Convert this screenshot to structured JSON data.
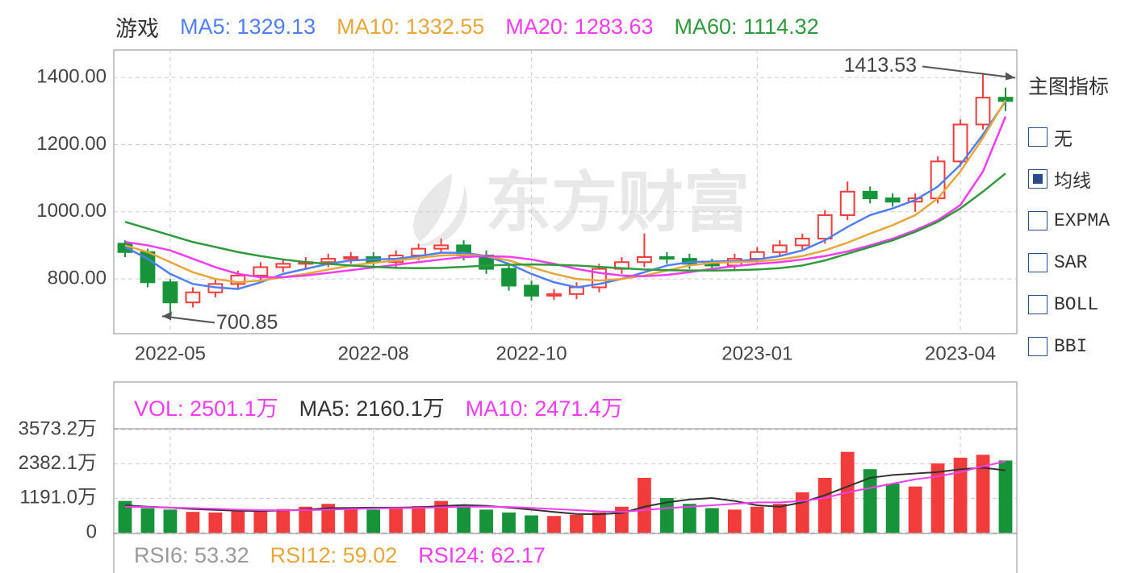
{
  "title": "游戏",
  "watermark": "东方财富",
  "chart_data": [
    {
      "type": "candlestick",
      "categories": [
        null,
        null,
        "2022-05",
        null,
        null,
        null,
        null,
        null,
        null,
        null,
        null,
        "2022-08",
        null,
        null,
        null,
        null,
        null,
        null,
        "2022-10",
        null,
        null,
        null,
        null,
        null,
        null,
        null,
        null,
        null,
        "2023-01",
        null,
        null,
        null,
        null,
        null,
        null,
        null,
        null,
        "2023-04",
        null,
        null
      ],
      "ohlc": [
        [
          905,
          915,
          865,
          880
        ],
        [
          880,
          890,
          775,
          790
        ],
        [
          790,
          800,
          700.85,
          730
        ],
        [
          730,
          775,
          715,
          760
        ],
        [
          760,
          800,
          745,
          785
        ],
        [
          785,
          825,
          770,
          810
        ],
        [
          810,
          850,
          795,
          835
        ],
        [
          835,
          860,
          820,
          845
        ],
        [
          845,
          865,
          830,
          850
        ],
        [
          850,
          875,
          835,
          860
        ],
        [
          860,
          880,
          845,
          865
        ],
        [
          865,
          880,
          835,
          850
        ],
        [
          850,
          885,
          835,
          870
        ],
        [
          870,
          905,
          855,
          890
        ],
        [
          890,
          920,
          875,
          900
        ],
        [
          900,
          915,
          855,
          870
        ],
        [
          870,
          885,
          815,
          830
        ],
        [
          830,
          845,
          765,
          780
        ],
        [
          780,
          795,
          735,
          750
        ],
        [
          750,
          770,
          738,
          755
        ],
        [
          755,
          790,
          740,
          775
        ],
        [
          775,
          845,
          760,
          830
        ],
        [
          830,
          865,
          815,
          850
        ],
        [
          850,
          935,
          835,
          865
        ],
        [
          865,
          880,
          845,
          860
        ],
        [
          860,
          875,
          830,
          845
        ],
        [
          845,
          860,
          825,
          840
        ],
        [
          840,
          875,
          825,
          860
        ],
        [
          860,
          895,
          845,
          880
        ],
        [
          880,
          915,
          865,
          900
        ],
        [
          900,
          935,
          885,
          920
        ],
        [
          920,
          1005,
          905,
          990
        ],
        [
          990,
          1090,
          975,
          1060
        ],
        [
          1060,
          1075,
          1025,
          1040
        ],
        [
          1040,
          1055,
          1015,
          1030
        ],
        [
          1030,
          1055,
          1000,
          1040
        ],
        [
          1040,
          1165,
          1025,
          1150
        ],
        [
          1150,
          1275,
          1135,
          1260
        ],
        [
          1260,
          1413.53,
          1245,
          1340
        ],
        [
          1340,
          1370,
          1300,
          1330
        ]
      ],
      "up_color": "#f23b3b",
      "down_color": "#17943a",
      "series": [
        {
          "name": "MA5",
          "color": "#4f7ff0",
          "values": [
            895,
            860,
            815,
            785,
            775,
            770,
            790,
            815,
            830,
            845,
            855,
            858,
            860,
            868,
            878,
            878,
            868,
            845,
            815,
            790,
            775,
            785,
            800,
            820,
            840,
            850,
            852,
            853,
            858,
            868,
            885,
            915,
            955,
            990,
            1010,
            1035,
            1075,
            1140,
            1230,
            1329.13
          ]
        },
        {
          "name": "MA10",
          "color": "#e8a53a",
          "values": [
            900,
            880,
            850,
            820,
            800,
            790,
            795,
            805,
            815,
            828,
            840,
            848,
            855,
            862,
            870,
            872,
            868,
            855,
            835,
            815,
            800,
            795,
            800,
            810,
            825,
            840,
            848,
            850,
            852,
            858,
            868,
            885,
            908,
            935,
            960,
            990,
            1040,
            1120,
            1220,
            1332.55
          ]
        },
        {
          "name": "MA20",
          "color": "#f23cf0",
          "values": [
            910,
            900,
            885,
            860,
            835,
            815,
            805,
            805,
            810,
            818,
            826,
            834,
            842,
            850,
            858,
            865,
            868,
            866,
            858,
            845,
            830,
            818,
            810,
            808,
            812,
            820,
            830,
            838,
            845,
            850,
            858,
            868,
            882,
            900,
            920,
            945,
            975,
            1020,
            1120,
            1283.63
          ]
        },
        {
          "name": "MA60",
          "color": "#2f9a3c",
          "values": [
            970,
            950,
            930,
            910,
            895,
            880,
            868,
            858,
            850,
            845,
            840,
            836,
            833,
            832,
            833,
            836,
            840,
            842,
            843,
            842,
            840,
            836,
            832,
            828,
            826,
            825,
            825,
            826,
            828,
            832,
            840,
            855,
            875,
            895,
            915,
            940,
            970,
            1010,
            1060,
            1114.32
          ]
        }
      ],
      "ylim": [
        637,
        1482
      ],
      "yticks": [
        {
          "value": 800,
          "label": "800.00"
        },
        {
          "value": 1000,
          "label": "1000.00"
        },
        {
          "value": 1200,
          "label": "1200.00"
        },
        {
          "value": 1400,
          "label": "1400.00"
        }
      ],
      "grid": true
    },
    {
      "type": "bar",
      "values": [
        1100,
        850,
        800,
        720,
        700,
        760,
        780,
        820,
        900,
        1000,
        860,
        800,
        850,
        920,
        1100,
        950,
        800,
        700,
        600,
        580,
        620,
        700,
        900,
        1900,
        1200,
        1000,
        850,
        800,
        900,
        1000,
        1400,
        1900,
        2800,
        2200,
        1700,
        1600,
        2400,
        2600,
        2700,
        2501.1
      ],
      "header": [
        {
          "name": "VOL",
          "label": "2501.1万",
          "color": "#f23cf0"
        },
        {
          "name": "MA5",
          "label": "2160.1万",
          "color": "#333333"
        },
        {
          "name": "MA10",
          "label": "2471.4万",
          "color": "#f23cf0"
        }
      ],
      "series": [
        {
          "name": "MA5",
          "color": "#333333",
          "values": [
            950,
            900,
            870,
            820,
            790,
            760,
            750,
            770,
            800,
            850,
            860,
            870,
            870,
            880,
            920,
            960,
            930,
            870,
            800,
            720,
            650,
            640,
            680,
            900,
            1050,
            1150,
            1200,
            1100,
            950,
            900,
            1050,
            1300,
            1600,
            1900,
            2000,
            2050,
            2100,
            2200,
            2250,
            2160.1
          ]
        },
        {
          "name": "MA10",
          "color": "#f23cf0",
          "values": [
            900,
            890,
            870,
            850,
            830,
            800,
            780,
            775,
            780,
            800,
            820,
            840,
            850,
            860,
            880,
            900,
            900,
            890,
            860,
            820,
            780,
            740,
            720,
            780,
            850,
            900,
            950,
            1000,
            1050,
            1050,
            1100,
            1200,
            1400,
            1550,
            1700,
            1850,
            1950,
            2100,
            2300,
            2471.4
          ]
        }
      ],
      "ylim": [
        0,
        3573.2
      ],
      "yticks": [
        0,
        {
          "value": 1191.0,
          "label": "1191.0万"
        },
        {
          "value": 2382.1,
          "label": "2382.1万"
        },
        {
          "value": 3573.2,
          "label": "3573.2万"
        }
      ],
      "grid": true
    }
  ],
  "rsi_header": [
    {
      "name": "RSI6",
      "value": 53.32,
      "color": "#999999"
    },
    {
      "name": "RSI12",
      "value": 59.02,
      "color": "#e8a53a"
    },
    {
      "name": "RSI24",
      "value": 62.17,
      "color": "#f23cf0"
    }
  ],
  "indicator_panel": {
    "title": "主图指标",
    "options": [
      {
        "label": "无",
        "checked": false
      },
      {
        "label": "均线",
        "checked": true
      },
      {
        "label": "EXPMA",
        "checked": false
      },
      {
        "label": "SAR",
        "checked": false
      },
      {
        "label": "BOLL",
        "checked": false
      },
      {
        "label": "BBI",
        "checked": false
      }
    ]
  }
}
